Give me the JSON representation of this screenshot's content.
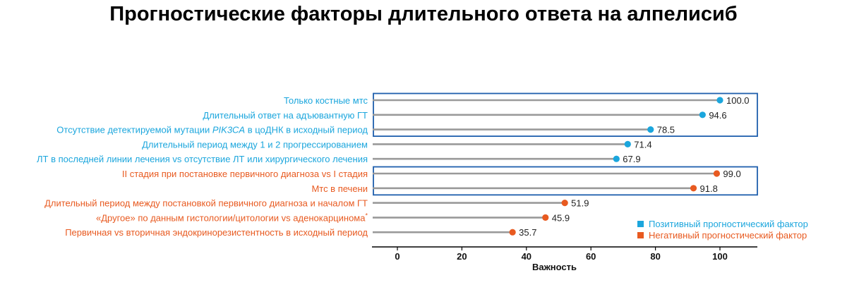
{
  "title": "Прогностические факторы длительного ответа на алпелисиб",
  "colors": {
    "positive": "#1ba6dd",
    "negative": "#e85a20",
    "stem": "#9a9a9a",
    "box": "#1f5fad",
    "axis": "#000000"
  },
  "legend": {
    "position": "bottom-right",
    "items": [
      {
        "label": "Позитивный прогностический фактор",
        "color": "#1ba6dd"
      },
      {
        "label": "Негативный прогностический фактор",
        "color": "#e85a20"
      }
    ]
  },
  "chart_data": {
    "type": "lollipop",
    "title": "",
    "xlabel": "Важность",
    "ylabel": "",
    "xlim": [
      -8,
      111
    ],
    "xticks": [
      0,
      20,
      40,
      60,
      80,
      100
    ],
    "grid": false,
    "categories": [
      {
        "label": "Только костные мтс",
        "value": 100.0,
        "display": "100.0",
        "group": "positive"
      },
      {
        "label": "Длительный ответ на адъювантную ГТ",
        "value": 94.6,
        "display": "94.6",
        "group": "positive"
      },
      {
        "label_parts": [
          "Отсутствие детектируемой мутации ",
          "PIK3CA",
          " в цоДНК в исходный период"
        ],
        "value": 78.5,
        "display": "78.5",
        "group": "positive"
      },
      {
        "label": "Длительный период между 1 и 2 прогрессированием",
        "value": 71.4,
        "display": "71.4",
        "group": "positive"
      },
      {
        "label": "ЛТ в последней линии лечения vs отсутствие ЛТ или хирургического лечения",
        "value": 67.9,
        "display": "67.9",
        "group": "positive"
      },
      {
        "label": "II стадия при постановке первичного диагноза vs I стадия",
        "value": 99.0,
        "display": "99.0",
        "group": "negative"
      },
      {
        "label": "Мтс в печени",
        "value": 91.8,
        "display": "91.8",
        "group": "negative"
      },
      {
        "label": "Длительный период между постановкой первичного диагноза и началом ГТ",
        "value": 51.9,
        "display": "51.9",
        "group": "negative"
      },
      {
        "label": "«Другое» по данным гистологии/цитологии vs аденокарцинома",
        "label_suffix": "*",
        "value": 45.9,
        "display": "45.9",
        "group": "negative"
      },
      {
        "label": "Первичная vs вторичная эндокринорезистентность в исходный период",
        "value": 35.7,
        "display": "35.7",
        "group": "negative"
      }
    ],
    "highlight_boxes": [
      {
        "from": 0,
        "to": 2
      },
      {
        "from": 5,
        "to": 6
      }
    ]
  }
}
